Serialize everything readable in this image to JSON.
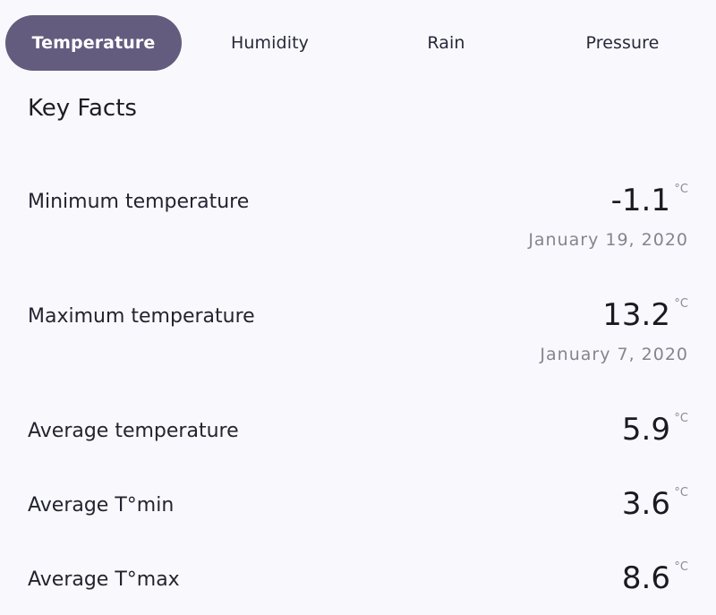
{
  "tabs": [
    {
      "label": "Temperature",
      "active": true
    },
    {
      "label": "Humidity",
      "active": false
    },
    {
      "label": "Rain",
      "active": false
    },
    {
      "label": "Pressure",
      "active": false
    }
  ],
  "section_title": "Key Facts",
  "facts": [
    {
      "label": "Minimum temperature",
      "value": "-1.1",
      "unit": "°C",
      "date": "January 19, 2020"
    },
    {
      "label": "Maximum temperature",
      "value": "13.2",
      "unit": "°C",
      "date": "January 7, 2020"
    },
    {
      "label": "Average temperature",
      "value": "5.9",
      "unit": "°C"
    },
    {
      "label": "Average T°min",
      "value": "3.6",
      "unit": "°C"
    },
    {
      "label": "Average T°max",
      "value": "8.6",
      "unit": "°C"
    }
  ],
  "colors": {
    "active_tab_bg": "#645c7e",
    "background": "#f9f9fd"
  }
}
